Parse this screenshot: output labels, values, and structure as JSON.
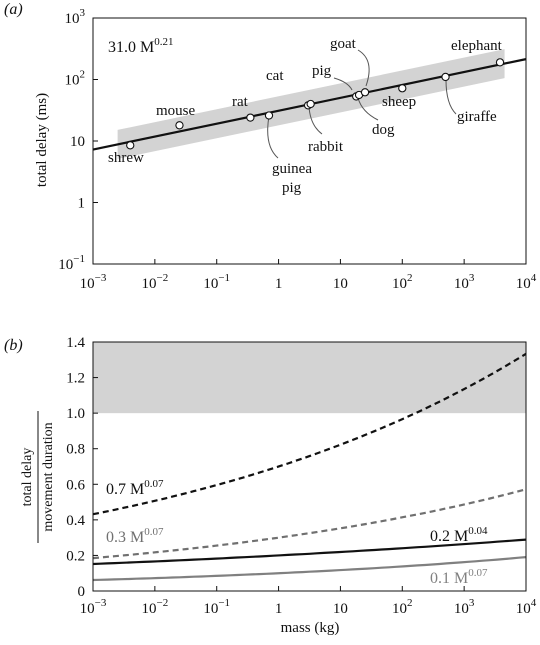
{
  "chart_data": [
    {
      "panel": "(a)",
      "type": "scatter",
      "ylabel": "total delay (ms)",
      "xlabel": "",
      "xscale": "log",
      "yscale": "log",
      "xlim": [
        0.001,
        10000
      ],
      "ylim": [
        0.1,
        1000
      ],
      "x_tick_labels": [
        "10−3",
        "10−2",
        "10−1",
        "1",
        "10",
        "102",
        "103",
        "104"
      ],
      "y_tick_labels": [
        "10−1",
        "1",
        "10",
        "102",
        "103"
      ],
      "fit": {
        "label": "31.0 M",
        "exponent": "0.21",
        "coef": 31.0,
        "power": 0.21
      },
      "band": {
        "color": "#d3d3d3",
        "lower_factor": 0.58,
        "upper_factor": 1.72
      },
      "points": [
        {
          "name": "shrew",
          "mass": 0.004,
          "delay": 8.5
        },
        {
          "name": "mouse",
          "mass": 0.025,
          "delay": 18
        },
        {
          "name": "rat",
          "mass": 0.35,
          "delay": 24
        },
        {
          "name": "guinea pig",
          "mass": 0.7,
          "delay": 26
        },
        {
          "name": "cat",
          "mass": 3.0,
          "delay": 38
        },
        {
          "name": "rabbit",
          "mass": 3.3,
          "delay": 40
        },
        {
          "name": "dog",
          "mass": 18,
          "delay": 53
        },
        {
          "name": "pig",
          "mass": 20,
          "delay": 56
        },
        {
          "name": "goat",
          "mass": 25,
          "delay": 62
        },
        {
          "name": "sheep",
          "mass": 100,
          "delay": 72
        },
        {
          "name": "giraffe",
          "mass": 500,
          "delay": 110
        },
        {
          "name": "elephant",
          "mass": 3800,
          "delay": 190
        }
      ],
      "labels": {
        "shrew": "shrew",
        "mouse": "mouse",
        "rat": "rat",
        "cat": "cat",
        "pig": "pig",
        "goat": "goat",
        "elephant": "elephant",
        "sheep": "sheep",
        "dog": "dog",
        "rabbit": "rabbit",
        "giraffe": "giraffe",
        "guinea": "guinea",
        "pig2": "pig"
      }
    },
    {
      "panel": "(b)",
      "type": "line",
      "ylabel_top": "total delay",
      "ylabel_bottom": "movement duration",
      "xlabel": "mass (kg)",
      "xscale": "log",
      "xlim": [
        0.001,
        10000
      ],
      "ylim": [
        0,
        1.4
      ],
      "x_tick_labels": [
        "10−3",
        "10−2",
        "10−1",
        "1",
        "10",
        "102",
        "103",
        "104"
      ],
      "y_tick_labels": [
        "0",
        "0.2",
        "0.4",
        "0.6",
        "0.8",
        "1.0",
        "1.2",
        "1.4"
      ],
      "band": {
        "from": 1.0,
        "to": 1.4,
        "color": "#d3d3d3"
      },
      "series": [
        {
          "label": "0.7 M",
          "exponent": "0.07",
          "coef": 0.7,
          "power": 0.07,
          "style": "dashed",
          "color": "#111111"
        },
        {
          "label": "0.3 M",
          "exponent": "0.07",
          "coef": 0.3,
          "power": 0.07,
          "style": "dashed",
          "color": "#707070"
        },
        {
          "label": "0.2 M",
          "exponent": "0.04",
          "coef": 0.2,
          "power": 0.04,
          "style": "solid",
          "color": "#111111"
        },
        {
          "label": "0.1 M",
          "exponent": "0.07",
          "coef": 0.1,
          "power": 0.07,
          "style": "solid",
          "color": "#808080"
        }
      ]
    }
  ]
}
